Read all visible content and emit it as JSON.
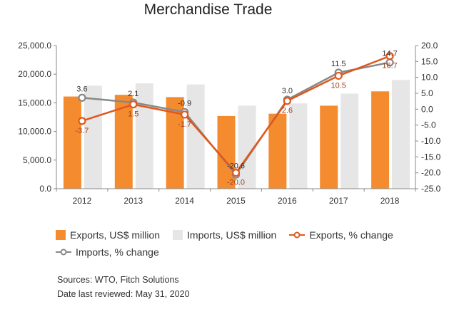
{
  "chart_data": {
    "type": "bar",
    "title": "Merchandise Trade",
    "categories": [
      "2012",
      "2013",
      "2014",
      "2015",
      "2016",
      "2017",
      "2018"
    ],
    "series": [
      {
        "name": "Exports, US$ million",
        "kind": "bar",
        "axis": "left",
        "color": "#f58b2f",
        "values": [
          16100,
          16400,
          16000,
          12700,
          13100,
          14500,
          17000
        ]
      },
      {
        "name": "Imports, US$ million",
        "kind": "bar",
        "axis": "left",
        "color": "#e6e6e6",
        "values": [
          18000,
          18400,
          18200,
          14500,
          14900,
          16600,
          19000
        ]
      },
      {
        "name": "Exports, % change",
        "kind": "line",
        "axis": "right",
        "color": "#e0581c",
        "values": [
          -3.7,
          1.5,
          -1.7,
          -20.0,
          2.6,
          10.5,
          16.7
        ],
        "labels": [
          "-3.7",
          "1.5",
          "-1.7",
          "-20.0",
          "2.6",
          "10.5",
          "16.7"
        ]
      },
      {
        "name": "Imports, % change",
        "kind": "line",
        "axis": "right",
        "color": "#888888",
        "values": [
          3.6,
          2.1,
          -0.9,
          -20.6,
          3.0,
          11.5,
          14.7
        ],
        "labels": [
          "3.6",
          "2.1",
          "-0.9",
          "-20.6",
          "3.0",
          "11.5",
          "14.7"
        ]
      }
    ],
    "y_left": {
      "min": 0,
      "max": 25000,
      "ticks": [
        "0.0",
        "5,000.0",
        "10,000.0",
        "15,000.0",
        "20,000.0",
        "25,000.0"
      ]
    },
    "y_right": {
      "min": -25,
      "max": 20,
      "ticks": [
        "-25.0",
        "-20.0",
        "-15.0",
        "-10.0",
        "-5.0",
        "0.0",
        "5.0",
        "10.0",
        "15.0",
        "20.0"
      ]
    },
    "grid": false,
    "legend_position": "bottom"
  },
  "footer": {
    "sources": "Sources: WTO, Fitch Solutions",
    "reviewed": "Date last reviewed: May 31, 2020"
  }
}
